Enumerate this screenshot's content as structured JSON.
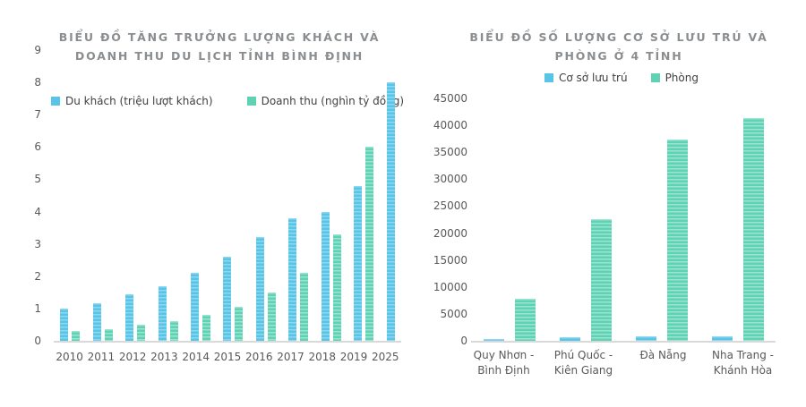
{
  "page": {
    "background": "#ffffff"
  },
  "colors": {
    "blue": {
      "base": "#58c5e7",
      "light": "#8cd8f0"
    },
    "green": {
      "base": "#5fd2b3",
      "light": "#9ae4d1"
    },
    "title_text": "#8a8e91",
    "axis_text": "#595959",
    "legend_text": "#404040",
    "baseline": "#d9d9d9"
  },
  "chart_data": [
    {
      "type": "bar",
      "title": "BIỂU ĐỒ TĂNG TRƯỞNG LƯỢNG KHÁCH VÀ DOANH THU DU LỊCH TỈNH BÌNH ĐỊNH",
      "categories": [
        "2010",
        "2011",
        "2012",
        "2013",
        "2014",
        "2015",
        "2016",
        "2017",
        "2018",
        "2019",
        "2025"
      ],
      "series": [
        {
          "name": "Du khách (triệu lượt khách)",
          "color_key": "blue",
          "values": [
            1.0,
            1.15,
            1.45,
            1.7,
            2.1,
            2.6,
            3.2,
            3.8,
            4.0,
            4.8,
            8.0
          ]
        },
        {
          "name": "Doanh thu (nghìn tỷ đồng)",
          "color_key": "green",
          "values": [
            0.3,
            0.35,
            0.5,
            0.6,
            0.8,
            1.05,
            1.5,
            2.1,
            3.3,
            6.0,
            null
          ]
        }
      ],
      "ylim": [
        0,
        9
      ],
      "ytick_step": 1,
      "grid": false,
      "legend_position": "top-inside"
    },
    {
      "type": "bar",
      "title": "BIỂU ĐỒ SỐ LƯỢNG CƠ SỞ LƯU TRÚ VÀ PHÒNG Ở 4 TỈNH",
      "categories": [
        "Quy Nhơn - Bình Định",
        "Phú Quốc - Kiên Giang",
        "Đà Nẵng",
        "Nha Trang - Khánh Hòa"
      ],
      "series": [
        {
          "name": "Cơ sở lưu trú",
          "color_key": "blue",
          "values": [
            300,
            650,
            800,
            800
          ]
        },
        {
          "name": "Phòng",
          "color_key": "green",
          "values": [
            7800,
            22600,
            37400,
            41400
          ]
        }
      ],
      "ylim": [
        0,
        45000
      ],
      "ytick_step": 5000,
      "grid": false,
      "legend_position": "top"
    }
  ]
}
